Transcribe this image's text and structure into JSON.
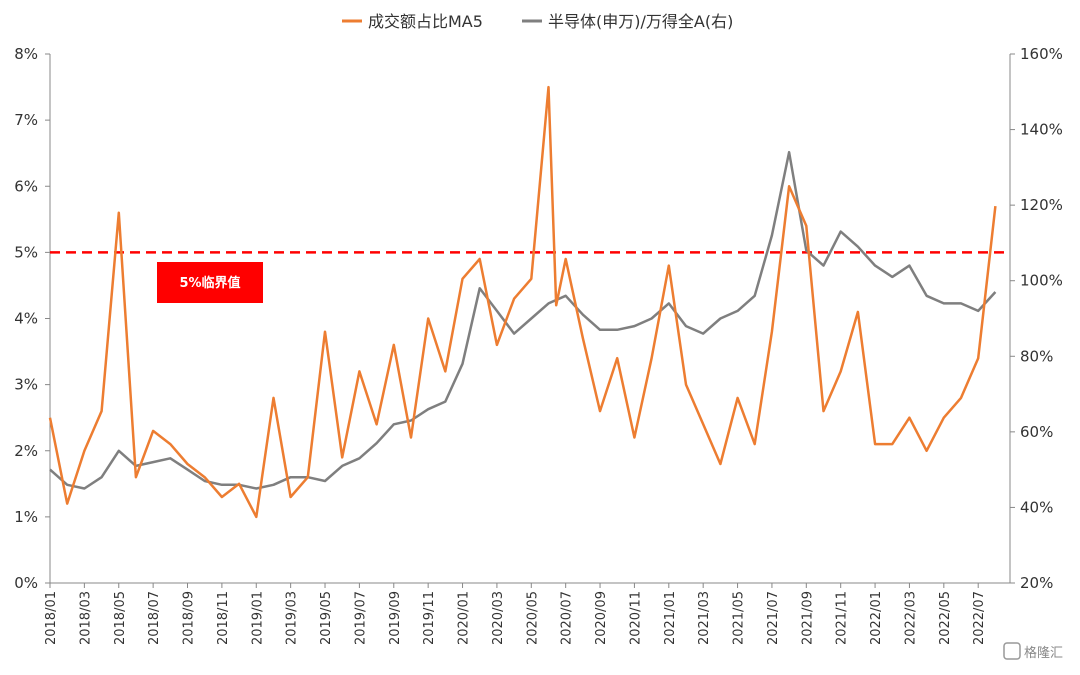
{
  "chart_data": {
    "type": "line",
    "x_range": [
      "2018/01",
      "2022/08"
    ],
    "x_ticks": [
      "2018/01",
      "2018/03",
      "2018/05",
      "2018/07",
      "2018/09",
      "2018/11",
      "2019/01",
      "2019/03",
      "2019/05",
      "2019/07",
      "2019/09",
      "2019/11",
      "2020/01",
      "2020/03",
      "2020/05",
      "2020/07",
      "2020/09",
      "2020/11",
      "2021/01",
      "2021/03",
      "2021/05",
      "2021/07",
      "2021/09",
      "2021/11",
      "2022/01",
      "2022/03",
      "2022/05",
      "2022/07"
    ],
    "y_left": {
      "ticks": [
        "0%",
        "1%",
        "2%",
        "3%",
        "4%",
        "5%",
        "6%",
        "7%",
        "8%"
      ],
      "min": 0,
      "max": 8
    },
    "y_right": {
      "ticks": [
        "20%",
        "40%",
        "60%",
        "80%",
        "100%",
        "120%",
        "140%",
        "160%"
      ],
      "min": 20,
      "max": 160
    },
    "legend_position": "top",
    "grid": false,
    "series": [
      {
        "name": "成交额占比MA5",
        "axis": "left",
        "color": "#ED7D31",
        "points": [
          [
            "2018/01",
            2.5
          ],
          [
            "2018/02",
            1.2
          ],
          [
            "2018/03",
            2.0
          ],
          [
            "2018/04",
            2.6
          ],
          [
            "2018/05",
            5.6
          ],
          [
            "2018/05",
            3.8
          ],
          [
            "2018/06",
            1.6
          ],
          [
            "2018/07",
            2.3
          ],
          [
            "2018/08",
            2.1
          ],
          [
            "2018/09",
            1.8
          ],
          [
            "2018/10",
            1.6
          ],
          [
            "2018/11",
            1.3
          ],
          [
            "2018/12",
            1.5
          ],
          [
            "2019/01",
            1.0
          ],
          [
            "2019/02",
            2.8
          ],
          [
            "2019/03",
            1.3
          ],
          [
            "2019/04",
            1.6
          ],
          [
            "2019/05",
            3.8
          ],
          [
            "2019/06",
            1.9
          ],
          [
            "2019/07",
            3.2
          ],
          [
            "2019/08",
            2.4
          ],
          [
            "2019/09",
            3.6
          ],
          [
            "2019/10",
            2.2
          ],
          [
            "2019/11",
            4.0
          ],
          [
            "2019/12",
            3.2
          ],
          [
            "2020/01",
            4.6
          ],
          [
            "2020/02",
            4.9
          ],
          [
            "2020/03",
            3.6
          ],
          [
            "2020/04",
            4.3
          ],
          [
            "2020/05",
            4.6
          ],
          [
            "2020/06",
            7.5
          ],
          [
            "2020/06",
            4.2
          ],
          [
            "2020/07",
            4.9
          ],
          [
            "2020/08",
            3.7
          ],
          [
            "2020/09",
            2.6
          ],
          [
            "2020/10",
            3.4
          ],
          [
            "2020/11",
            2.2
          ],
          [
            "2020/12",
            3.4
          ],
          [
            "2021/01",
            4.8
          ],
          [
            "2021/02",
            3.0
          ],
          [
            "2021/03",
            2.4
          ],
          [
            "2021/04",
            1.8
          ],
          [
            "2021/05",
            2.8
          ],
          [
            "2021/06",
            2.1
          ],
          [
            "2021/07",
            3.8
          ],
          [
            "2021/08",
            6.0
          ],
          [
            "2021/09",
            5.4
          ],
          [
            "2021/10",
            2.6
          ],
          [
            "2021/11",
            3.2
          ],
          [
            "2021/12",
            4.1
          ],
          [
            "2022/01",
            2.1
          ],
          [
            "2022/02",
            2.1
          ],
          [
            "2022/03",
            2.5
          ],
          [
            "2022/04",
            2.0
          ],
          [
            "2022/05",
            2.5
          ],
          [
            "2022/06",
            2.8
          ],
          [
            "2022/07",
            3.4
          ],
          [
            "2022/08",
            5.7
          ]
        ]
      },
      {
        "name": "半导体(申万)/万得全A(右)",
        "axis": "right",
        "color": "#7F7F7F",
        "points": [
          [
            "2018/01",
            50
          ],
          [
            "2018/02",
            46
          ],
          [
            "2018/03",
            45
          ],
          [
            "2018/04",
            48
          ],
          [
            "2018/05",
            55
          ],
          [
            "2018/06",
            51
          ],
          [
            "2018/07",
            52
          ],
          [
            "2018/08",
            53
          ],
          [
            "2018/09",
            50
          ],
          [
            "2018/10",
            47
          ],
          [
            "2018/11",
            46
          ],
          [
            "2018/12",
            46
          ],
          [
            "2019/01",
            45
          ],
          [
            "2019/02",
            46
          ],
          [
            "2019/03",
            48
          ],
          [
            "2019/04",
            48
          ],
          [
            "2019/05",
            47
          ],
          [
            "2019/06",
            51
          ],
          [
            "2019/07",
            53
          ],
          [
            "2019/08",
            57
          ],
          [
            "2019/09",
            62
          ],
          [
            "2019/10",
            63
          ],
          [
            "2019/11",
            66
          ],
          [
            "2019/12",
            68
          ],
          [
            "2020/01",
            78
          ],
          [
            "2020/02",
            98
          ],
          [
            "2020/03",
            92
          ],
          [
            "2020/04",
            86
          ],
          [
            "2020/05",
            90
          ],
          [
            "2020/06",
            94
          ],
          [
            "2020/07",
            96
          ],
          [
            "2020/08",
            91
          ],
          [
            "2020/09",
            87
          ],
          [
            "2020/10",
            87
          ],
          [
            "2020/11",
            88
          ],
          [
            "2020/12",
            90
          ],
          [
            "2021/01",
            94
          ],
          [
            "2021/02",
            88
          ],
          [
            "2021/03",
            86
          ],
          [
            "2021/04",
            90
          ],
          [
            "2021/05",
            92
          ],
          [
            "2021/06",
            96
          ],
          [
            "2021/07",
            112
          ],
          [
            "2021/08",
            134
          ],
          [
            "2021/09",
            108
          ],
          [
            "2021/10",
            104
          ],
          [
            "2021/11",
            113
          ],
          [
            "2021/12",
            109
          ],
          [
            "2022/01",
            104
          ],
          [
            "2022/02",
            101
          ],
          [
            "2022/03",
            104
          ],
          [
            "2022/04",
            96
          ],
          [
            "2022/05",
            94
          ],
          [
            "2022/06",
            94
          ],
          [
            "2022/07",
            92
          ],
          [
            "2022/08",
            97
          ]
        ]
      }
    ],
    "threshold": {
      "value": 5,
      "axis": "left",
      "label": "5%临界值",
      "color": "#FF0000"
    }
  },
  "watermark": "格隆汇"
}
